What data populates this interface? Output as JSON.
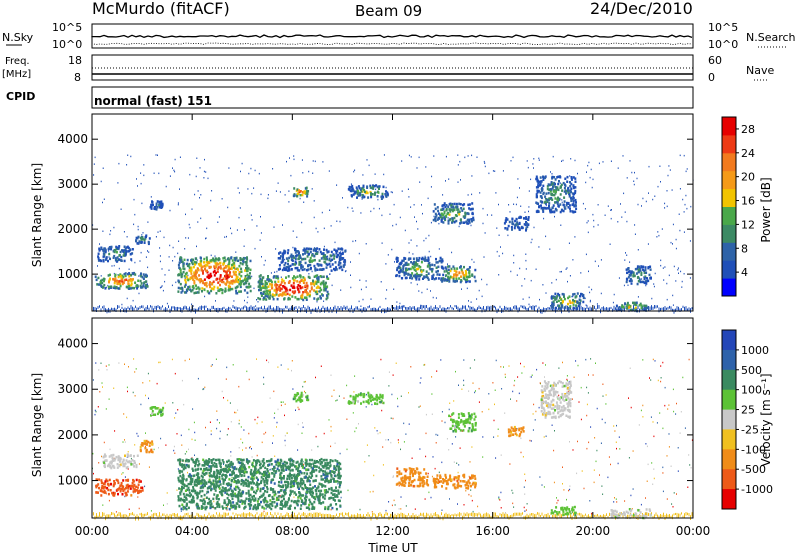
{
  "header": {
    "station": "McMurdo (fitACF)",
    "beam": "Beam 09",
    "date": "24/Dec/2010"
  },
  "top_panels": {
    "nsky_label": "N.Sky",
    "nsearch_label": "N.Search",
    "scale_top": "10^5",
    "scale_bottom": "10^0",
    "freq_label": "Freq.",
    "freq_unit": "[MHz]",
    "freq_ticks": [
      "18",
      "8"
    ],
    "nave_label": "Nave",
    "nave_ticks": [
      "60",
      "0"
    ],
    "cpid_label": "CPID",
    "cpid_value": "normal (fast) 151"
  },
  "colors": {
    "power": [
      "#0000ff",
      "#1f4fb8",
      "#2e63a8",
      "#3c8a64",
      "#4aa84a",
      "#f2c400",
      "#f59a18",
      "#f27a1e",
      "#ee3a15",
      "#e60000"
    ],
    "velocity": [
      "#2346b8",
      "#2e62aa",
      "#3a8a60",
      "#5cc236",
      "#c8c8c8",
      "#f0c020",
      "#f08c18",
      "#ee5a18",
      "#e60000"
    ]
  },
  "chart_data": [
    {
      "type": "heatmap",
      "panel": "power",
      "ylabel": "Slant Range [km]",
      "xlabel": "",
      "x_ticks": [
        "00:00",
        "04:00",
        "08:00",
        "12:00",
        "16:00",
        "20:00",
        "00:00"
      ],
      "xlim_hours": [
        0,
        24
      ],
      "y_ticks": [
        1000,
        2000,
        3000,
        4000
      ],
      "ylim": [
        180,
        4560
      ],
      "colorbar": {
        "label": "Power [dB]",
        "ticks": [
          4,
          8,
          12,
          16,
          20,
          24,
          28
        ],
        "range": [
          0,
          30
        ]
      },
      "regions": [
        {
          "t0": 0.1,
          "t1": 2.2,
          "r0": 700,
          "r1": 1050,
          "level": 7
        },
        {
          "t0": 0.2,
          "t1": 1.6,
          "r0": 1300,
          "r1": 1650,
          "level": 3
        },
        {
          "t0": 1.7,
          "t1": 2.3,
          "r0": 1700,
          "r1": 1900,
          "level": 3
        },
        {
          "t0": 2.3,
          "t1": 2.8,
          "r0": 2450,
          "r1": 2650,
          "level": 2
        },
        {
          "t0": 3.4,
          "t1": 6.3,
          "r0": 600,
          "r1": 1400,
          "level": 9
        },
        {
          "t0": 6.6,
          "t1": 9.4,
          "r0": 450,
          "r1": 1000,
          "level": 9
        },
        {
          "t0": 7.4,
          "t1": 10.1,
          "r0": 1100,
          "r1": 1600,
          "level": 3
        },
        {
          "t0": 8.0,
          "t1": 8.6,
          "r0": 2750,
          "r1": 2950,
          "level": 7
        },
        {
          "t0": 10.2,
          "t1": 11.8,
          "r0": 2700,
          "r1": 3000,
          "level": 4
        },
        {
          "t0": 12.1,
          "t1": 14.0,
          "r0": 900,
          "r1": 1400,
          "level": 4
        },
        {
          "t0": 13.9,
          "t1": 15.3,
          "r0": 850,
          "r1": 1200,
          "level": 6
        },
        {
          "t0": 13.6,
          "t1": 15.2,
          "r0": 2150,
          "r1": 2600,
          "level": 4
        },
        {
          "t0": 16.4,
          "t1": 17.4,
          "r0": 2000,
          "r1": 2300,
          "level": 2
        },
        {
          "t0": 17.7,
          "t1": 19.3,
          "r0": 2400,
          "r1": 3200,
          "level": 3
        },
        {
          "t0": 18.3,
          "t1": 19.6,
          "r0": 250,
          "r1": 600,
          "level": 5
        },
        {
          "t0": 21.3,
          "t1": 22.3,
          "r0": 800,
          "r1": 1200,
          "level": 3
        },
        {
          "t0": 20.9,
          "t1": 22.2,
          "r0": 200,
          "r1": 400,
          "level": 5
        }
      ]
    },
    {
      "type": "heatmap",
      "panel": "velocity",
      "ylabel": "Slant Range [km]",
      "xlabel": "Time UT",
      "x_ticks": [
        "00:00",
        "04:00",
        "08:00",
        "12:00",
        "16:00",
        "20:00",
        "00:00"
      ],
      "xlim_hours": [
        0,
        24
      ],
      "y_ticks": [
        1000,
        2000,
        3000,
        4000
      ],
      "ylim": [
        180,
        4560
      ],
      "colorbar": {
        "label": "Velocity [m s⁻¹]",
        "ticks": [
          "1000",
          "500",
          "100",
          "25",
          "-25",
          "-100",
          "-500",
          "-1000"
        ]
      },
      "regions": [
        {
          "t0": 0.1,
          "t1": 2.0,
          "r0": 700,
          "r1": 1050,
          "level": 7
        },
        {
          "t0": 0.4,
          "t1": 1.8,
          "r0": 1300,
          "r1": 1600,
          "level": 4
        },
        {
          "t0": 1.9,
          "t1": 2.4,
          "r0": 1650,
          "r1": 1900,
          "level": 6
        },
        {
          "t0": 2.3,
          "t1": 2.8,
          "r0": 2450,
          "r1": 2650,
          "level": 3
        },
        {
          "t0": 3.4,
          "t1": 9.9,
          "r0": 400,
          "r1": 1500,
          "level": 2
        },
        {
          "t0": 8.0,
          "t1": 8.6,
          "r0": 2750,
          "r1": 2950,
          "level": 3
        },
        {
          "t0": 10.2,
          "t1": 11.6,
          "r0": 2700,
          "r1": 2950,
          "level": 3
        },
        {
          "t0": 12.1,
          "t1": 13.4,
          "r0": 900,
          "r1": 1300,
          "level": 6
        },
        {
          "t0": 13.6,
          "t1": 15.3,
          "r0": 850,
          "r1": 1150,
          "level": 6
        },
        {
          "t0": 14.2,
          "t1": 15.3,
          "r0": 2100,
          "r1": 2500,
          "level": 3
        },
        {
          "t0": 16.6,
          "t1": 17.2,
          "r0": 2000,
          "r1": 2200,
          "level": 6
        },
        {
          "t0": 17.9,
          "t1": 19.1,
          "r0": 2400,
          "r1": 3200,
          "level": 4
        },
        {
          "t0": 18.3,
          "t1": 19.3,
          "r0": 250,
          "r1": 450,
          "level": 3
        },
        {
          "t0": 20.7,
          "t1": 22.3,
          "r0": 200,
          "r1": 400,
          "level": 4
        }
      ]
    }
  ]
}
